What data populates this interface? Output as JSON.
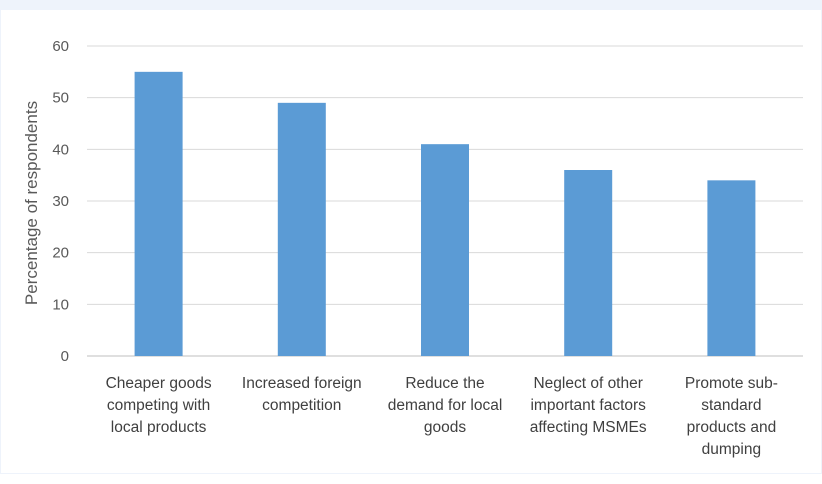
{
  "chart_data": {
    "type": "bar",
    "title": "",
    "xlabel": "",
    "ylabel": "Percentage of respondents",
    "ylim": [
      0,
      60
    ],
    "yticks": [
      0,
      10,
      20,
      30,
      40,
      50,
      60
    ],
    "grid": true,
    "legend": "none",
    "categories": [
      [
        "Cheaper goods",
        "competing with",
        "local products"
      ],
      [
        "Increased foreign",
        "competition"
      ],
      [
        "Reduce the",
        "demand for local",
        "goods"
      ],
      [
        "Neglect of other",
        "important factors",
        "affecting MSMEs"
      ],
      [
        "Promote sub-",
        "standard",
        "products and",
        "dumping"
      ]
    ],
    "values": [
      55,
      49,
      41,
      36,
      34
    ],
    "colors": {
      "bar": "#5b9bd5",
      "grid": "#d9d9d9",
      "axis": "#bfbfbf"
    }
  }
}
